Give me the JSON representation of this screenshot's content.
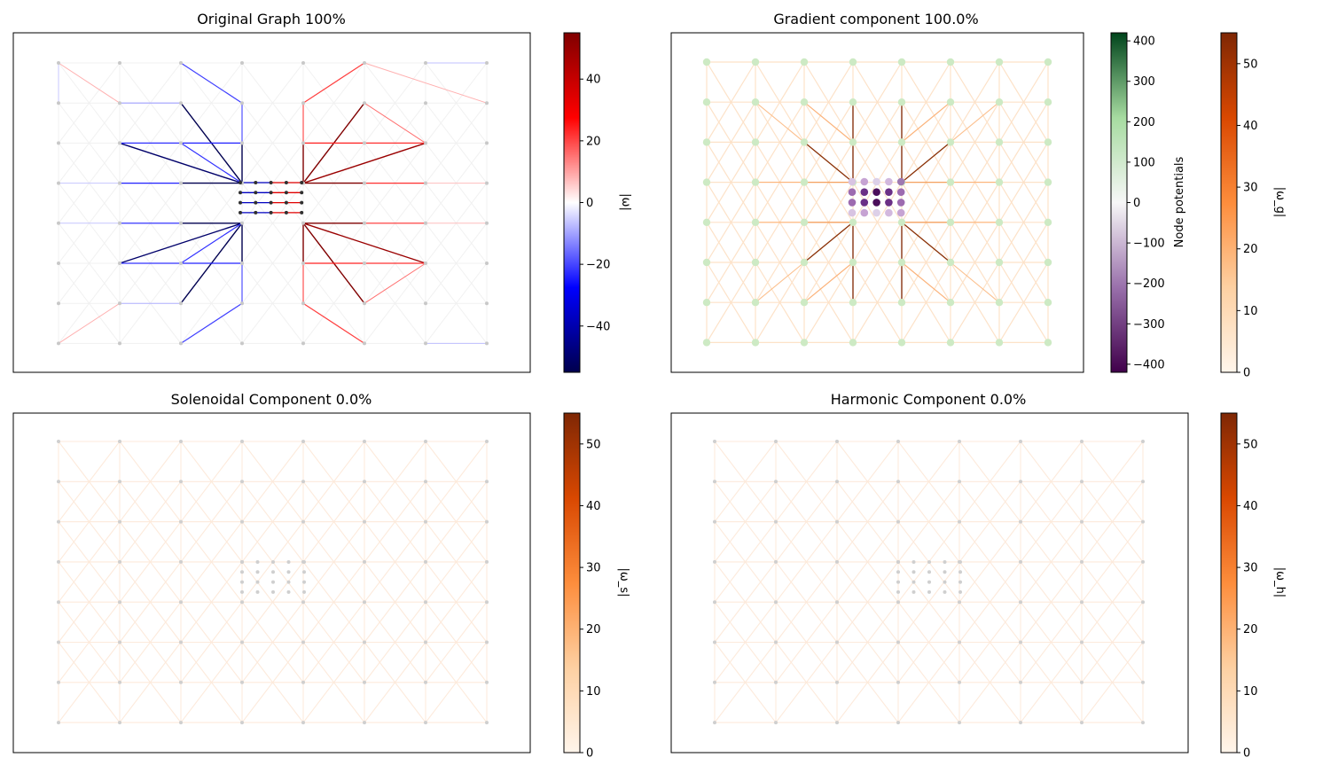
{
  "chart_data": [
    {
      "type": "network",
      "title": "Original Graph 100%",
      "edge_colormap": "seismic",
      "colorbar": {
        "label": "|ω|",
        "ticks": [
          40,
          20,
          0,
          -20,
          -40
        ],
        "range": [
          -55,
          55
        ]
      },
      "node_color": "#c8c8c8",
      "axes": "hidden"
    },
    {
      "type": "network",
      "title": "Gradient component 100.0%",
      "edge_colormap": "Oranges",
      "node_colormap": "PRGn",
      "colorbars": [
        {
          "label": "Node potentials",
          "ticks": [
            400,
            300,
            200,
            100,
            0,
            -100,
            -200,
            -300,
            -400
          ],
          "range": [
            -420,
            420
          ]
        },
        {
          "label": "|ω_g|",
          "ticks": [
            50,
            40,
            30,
            20,
            10,
            0
          ],
          "range": [
            0,
            55
          ]
        }
      ],
      "axes": "hidden"
    },
    {
      "type": "network",
      "title": "Solenoidal Component 0.0%",
      "edge_colormap": "Oranges",
      "colorbar": {
        "label": "|ω_s|",
        "ticks": [
          50,
          40,
          30,
          20,
          10,
          0
        ],
        "range": [
          0,
          55
        ]
      },
      "node_color": "#c8c8c8",
      "axes": "hidden"
    },
    {
      "type": "network",
      "title": "Harmonic Component 0.0%",
      "edge_colormap": "Oranges",
      "colorbar": {
        "label": "|ω_h|",
        "ticks": [
          50,
          40,
          30,
          20,
          10,
          0
        ],
        "range": [
          0,
          55
        ]
      },
      "node_color": "#c8c8c8",
      "axes": "hidden"
    }
  ]
}
